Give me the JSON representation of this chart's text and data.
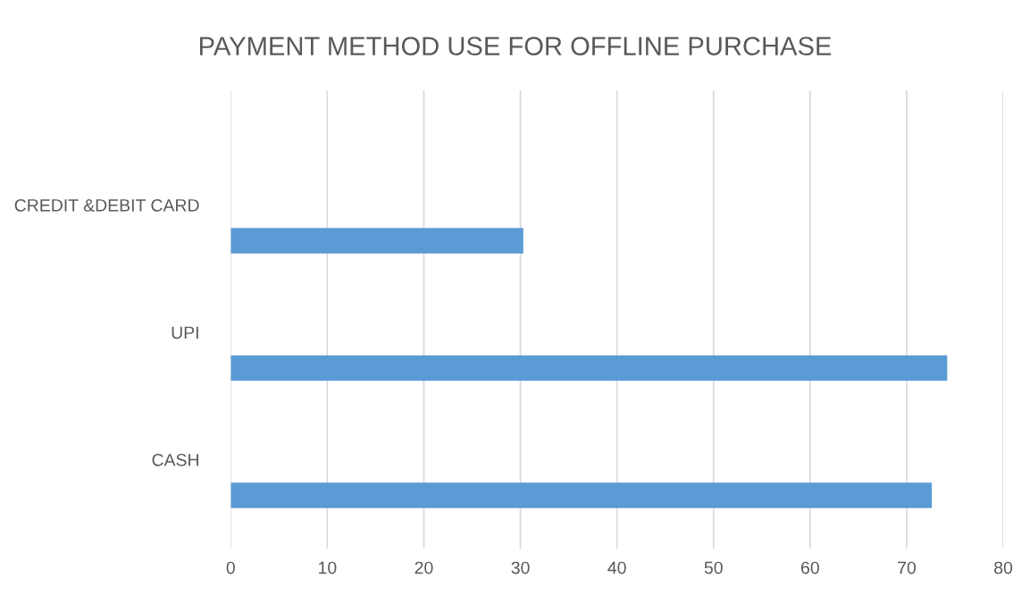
{
  "chart_data": {
    "type": "bar",
    "orientation": "horizontal",
    "title": "PAYMENT METHOD USE FOR OFFLINE PURCHASE",
    "categories": [
      "CREDIT &DEBIT CARD",
      "UPI",
      "CASH"
    ],
    "values": [
      30.3,
      74.2,
      72.6
    ],
    "color": "#5b9bd5",
    "xlim": [
      0,
      80
    ],
    "xticks": [
      0,
      10,
      20,
      30,
      40,
      50,
      60,
      70,
      80
    ],
    "grid": "x"
  }
}
